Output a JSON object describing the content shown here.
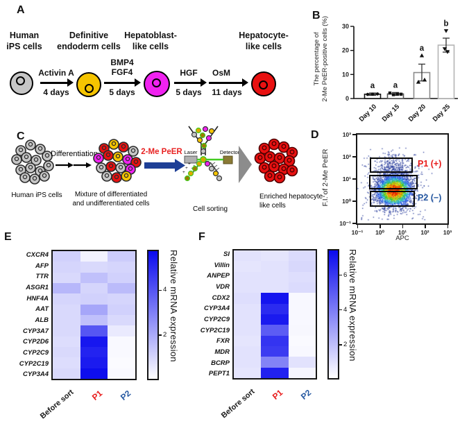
{
  "figure": {
    "background": "#ffffff"
  },
  "panel_a": {
    "label": "A",
    "stages": [
      {
        "line1": "Human",
        "line2": "iPS cells",
        "color": "#c6c6c6"
      },
      {
        "line1": "Definitive",
        "line2": "endoderm cells",
        "color": "#f5c400"
      },
      {
        "line1": "Hepatoblast-",
        "line2": "like cells",
        "color": "#f022f0"
      },
      {
        "line1": "Hepatocyte-",
        "line2": "like cells",
        "color": "#e81111"
      }
    ],
    "steps": [
      {
        "factor": "Activin A",
        "factor2": "",
        "duration": "4 days"
      },
      {
        "factor": "BMP4",
        "factor2": "FGF4",
        "duration": "5 days"
      },
      {
        "factor": "HGF",
        "factor2": "",
        "duration": "5 days"
      },
      {
        "factor": "OsM",
        "factor2": "",
        "duration": "11 days"
      }
    ]
  },
  "panel_b": {
    "label": "B",
    "ylabel_line1": "The percentage of",
    "ylabel_line2": "2-Me PeER-positive cells (%)",
    "chart_data": {
      "type": "bar",
      "categories": [
        "Day 10",
        "Day 15",
        "Day 20",
        "Day 25"
      ],
      "values": [
        1.8,
        1.9,
        10.8,
        22.2
      ],
      "errors": [
        0.5,
        0.6,
        3.5,
        2.9
      ],
      "significance_labels": [
        "a",
        "a",
        "a",
        "b"
      ],
      "data_points": [
        [
          1.7,
          1.8,
          1.9
        ],
        [
          2.3,
          1.6,
          1.9,
          1.8
        ],
        [
          6.9,
          7.8,
          17.9
        ],
        [
          19.4,
          20.6,
          28.1
        ]
      ],
      "point_markers": [
        "circle",
        "square",
        "triangle-up",
        "triangle-down"
      ],
      "bar_outline_colors": [
        "#111111",
        "#555555",
        "#8a8a8a",
        "#b5b5b5"
      ],
      "bar_fill": "#ffffff",
      "ylim": [
        0,
        30
      ],
      "yticks": [
        0,
        10,
        20,
        30
      ]
    }
  },
  "panel_c": {
    "label": "C",
    "ips_label": "Human iPS cells",
    "differentiation_label": "Differentiation",
    "mixture_line1": "Mixture  of  differentiated",
    "mixture_line2": "and undifferentiated cells",
    "probe_label": "2-Me PeER",
    "probe_color": "#e82222",
    "laser_label": "Laser",
    "detector_label": "Detector",
    "sorting_label": "Cell sorting",
    "enriched_line1": "Enriched hepatocyte-",
    "enriched_line2": "like cells",
    "arrow_color": "#1e3f96"
  },
  "panel_d": {
    "label": "D",
    "ylabel": "F.I. of 2-Me PeER",
    "xlabel": "APC",
    "xticks": [
      "10⁻¹",
      "10⁰",
      "10¹",
      "10²",
      "10³"
    ],
    "yticks": [
      "10³",
      "10²",
      "10¹",
      "10⁰",
      "10⁻¹"
    ],
    "gate_p1_label": "P1 (+)",
    "gate_p1_color": "#e81a1a",
    "gate_p2_label": "P2 (−)",
    "gate_p2_color": "#2457a0",
    "chart_data": {
      "type": "scatter",
      "subtype": "flow-cytometry-density",
      "x_axis": "APC, log10 decades",
      "y_axis": "F.I. of 2-Me PeER, log10 decades",
      "x_range_log10": [
        -1,
        3
      ],
      "y_range_log10": [
        -1,
        3
      ],
      "main_cluster": {
        "center_log10": [
          0.62,
          0.48
        ],
        "sigma_log10": [
          0.42,
          0.38
        ],
        "n": 2600
      },
      "upper_cluster": {
        "center_log10": [
          0.66,
          1.3
        ],
        "sigma_log10": [
          0.45,
          0.42
        ],
        "n": 500
      },
      "sparse_points": {
        "x_log10_range": [
          -0.85,
          2.0
        ],
        "y_log10_range": [
          -0.85,
          2.4
        ],
        "n": 140
      },
      "gates_log10": [
        {
          "name": "P1 (+)",
          "x": [
            -0.42,
            1.47
          ],
          "y": [
            1.29,
            1.95
          ]
        },
        {
          "name": "mid",
          "x": [
            -0.45,
            1.69
          ],
          "y": [
            0.53,
            1.19
          ]
        },
        {
          "name": "P2 (−)",
          "x": [
            -0.42,
            1.57
          ],
          "y": [
            -0.25,
            0.47
          ]
        }
      ]
    }
  },
  "panel_e": {
    "label": "E",
    "colorbar_label": "Relative mRNA expression",
    "chart_data": {
      "type": "heatmap",
      "rows": [
        "CXCR4",
        "AFP",
        "TTR",
        "ASGR1",
        "HNF4A",
        "AAT",
        "ALB",
        "CYP3A7",
        "CYP2D6",
        "CYP2C9",
        "CYP2C19",
        "CYP3A4"
      ],
      "columns": [
        "Before sort",
        "P1",
        "P2"
      ],
      "column_colors": [
        "#1a1a1a",
        "#e81a1a",
        "#2457a0"
      ],
      "values": [
        [
          1.1,
          0.3,
          1.2
        ],
        [
          1.0,
          0.9,
          1.0
        ],
        [
          0.9,
          1.5,
          1.1
        ],
        [
          1.7,
          1.0,
          1.6
        ],
        [
          1.0,
          1.1,
          1.0
        ],
        [
          0.9,
          2.1,
          1.1
        ],
        [
          0.9,
          1.5,
          0.9
        ],
        [
          0.9,
          4.0,
          0.5
        ],
        [
          0.8,
          5.5,
          0.15
        ],
        [
          0.9,
          5.2,
          0.15
        ],
        [
          0.8,
          5.4,
          0.1
        ],
        [
          0.9,
          5.7,
          0.15
        ]
      ],
      "scale_max": 5.8,
      "colorbar_ticks": [
        2,
        4
      ],
      "max_color": "#0a0aee"
    }
  },
  "panel_f": {
    "label": "F",
    "colorbar_label": "Relative mRNA expression",
    "chart_data": {
      "type": "heatmap",
      "rows": [
        "SI",
        "Villin",
        "ANPEP",
        "VDR",
        "CDX2",
        "CYP3A4",
        "CYP2C9",
        "CYP2C19",
        "FXR",
        "MDR",
        "BCRP",
        "PEPT1"
      ],
      "columns": [
        "Before sort",
        "P1",
        "P2"
      ],
      "column_colors": [
        "#1a1a1a",
        "#e81a1a",
        "#2457a0"
      ],
      "values": [
        [
          0.9,
          0.8,
          1.1
        ],
        [
          0.8,
          0.9,
          1.2
        ],
        [
          0.9,
          0.9,
          1.0
        ],
        [
          0.9,
          0.9,
          1.1
        ],
        [
          1.0,
          7.2,
          0.2
        ],
        [
          0.9,
          6.5,
          0.2
        ],
        [
          0.9,
          7.0,
          0.2
        ],
        [
          0.9,
          5.0,
          0.25
        ],
        [
          0.8,
          6.2,
          0.15
        ],
        [
          0.9,
          6.0,
          0.2
        ],
        [
          0.9,
          3.8,
          0.9
        ],
        [
          0.8,
          6.8,
          0.3
        ]
      ],
      "scale_max": 7.5,
      "colorbar_ticks": [
        2,
        4,
        6
      ],
      "max_color": "#0a0aee"
    }
  }
}
